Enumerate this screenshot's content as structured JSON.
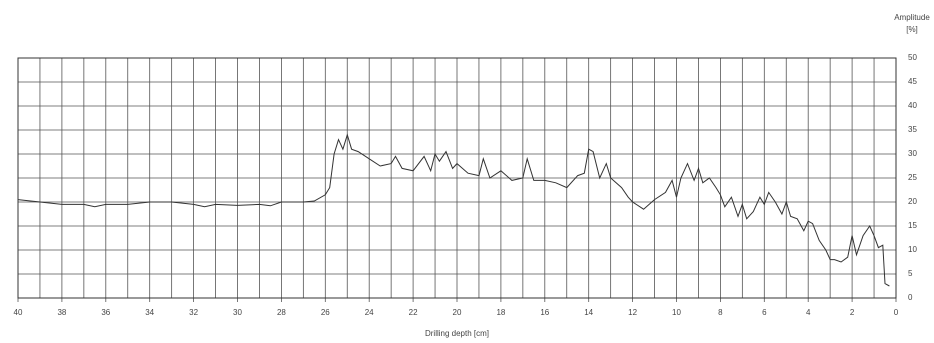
{
  "chart_data": {
    "type": "line",
    "x_label": "Drilling depth [cm]",
    "y_label": [
      "Amplitude",
      "[%]"
    ],
    "x_reversed": true,
    "y_axis_side": "right",
    "grid": true,
    "xlim": [
      40,
      0
    ],
    "ylim": [
      0,
      50
    ],
    "xticks": [
      40,
      38,
      36,
      34,
      32,
      30,
      28,
      26,
      24,
      22,
      20,
      18,
      16,
      14,
      12,
      10,
      8,
      6,
      4,
      2,
      0
    ],
    "xminorticks": [
      39,
      37,
      35,
      33,
      31,
      29,
      27,
      25,
      23,
      21,
      19,
      17,
      15,
      13,
      11,
      9,
      7,
      5,
      3,
      1
    ],
    "yticks": [
      0,
      5,
      10,
      15,
      20,
      25,
      30,
      35,
      40,
      45,
      50
    ],
    "series": [
      {
        "color": "#333333",
        "x": [
          40,
          39,
          38,
          37,
          36.5,
          36,
          35,
          34,
          33,
          32,
          31.5,
          31,
          30,
          29,
          28.5,
          28,
          27,
          26.5,
          26,
          25.8,
          25.6,
          25.4,
          25.2,
          25,
          24.8,
          24.5,
          24,
          23.5,
          23,
          22.8,
          22.5,
          22,
          21.5,
          21.2,
          21,
          20.8,
          20.5,
          20.2,
          20,
          19.5,
          19,
          18.8,
          18.5,
          18,
          17.5,
          17,
          16.8,
          16.5,
          16,
          15.5,
          15,
          14.5,
          14.2,
          14,
          13.8,
          13.5,
          13.2,
          13,
          12.5,
          12.2,
          12,
          11.5,
          11,
          10.5,
          10.2,
          10,
          9.8,
          9.5,
          9.2,
          9,
          8.8,
          8.5,
          8.2,
          8,
          7.8,
          7.5,
          7.2,
          7,
          6.8,
          6.5,
          6.2,
          6,
          5.8,
          5.5,
          5.2,
          5,
          4.8,
          4.5,
          4.2,
          4,
          3.8,
          3.5,
          3.2,
          3,
          2.8,
          2.5,
          2.2,
          2,
          1.8,
          1.5,
          1.2,
          1,
          0.8,
          0.6,
          0.5,
          0.3
        ],
        "values": [
          20.5,
          20,
          19.5,
          19.5,
          19,
          19.5,
          19.5,
          20,
          20,
          19.5,
          19,
          19.5,
          19.3,
          19.5,
          19.2,
          20,
          20,
          20.2,
          21.5,
          23,
          30,
          33,
          31,
          34,
          31,
          30.5,
          29,
          27.5,
          28,
          29.5,
          27,
          26.5,
          29.5,
          26.5,
          30,
          28.5,
          30.5,
          27,
          28,
          26,
          25.5,
          29,
          25,
          26.5,
          24.5,
          25,
          29,
          24.5,
          24.5,
          24,
          23,
          25.5,
          26,
          31,
          30.5,
          25,
          28,
          25,
          23,
          21,
          20,
          18.5,
          20.5,
          22,
          24.5,
          21,
          25,
          28,
          24.5,
          27,
          24,
          25,
          23,
          21.5,
          19,
          21,
          17,
          19.5,
          16.5,
          18,
          21,
          19.5,
          22,
          20,
          17.5,
          20,
          17,
          16.5,
          14,
          16,
          15.5,
          12,
          10,
          8,
          8,
          7.5,
          8.5,
          13,
          9,
          13,
          15,
          13,
          10.5,
          11,
          3,
          2.5
        ]
      }
    ]
  }
}
